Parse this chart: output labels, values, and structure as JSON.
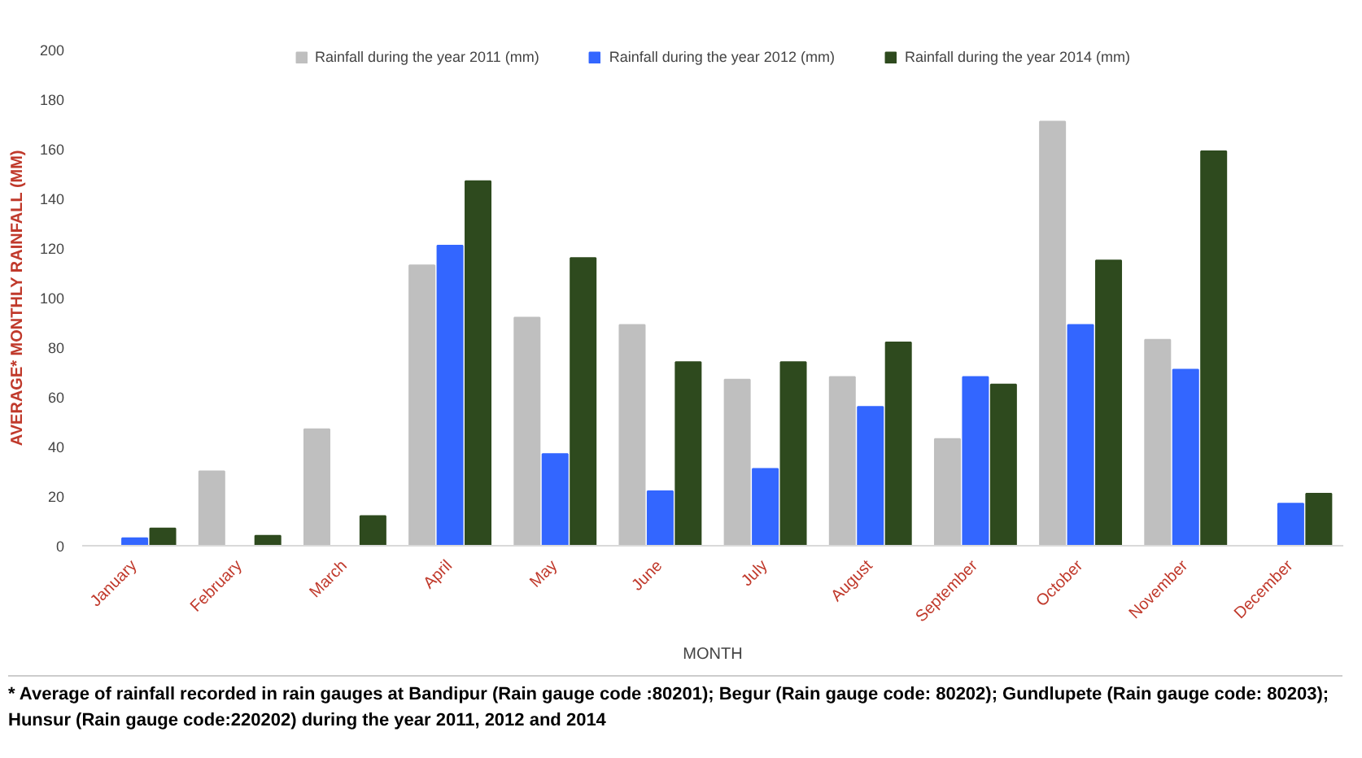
{
  "chart_data": {
    "type": "bar",
    "xlabel": "MONTH",
    "ylabel": "AVERAGE* MONTHLY RAINFALL (MM)",
    "categories": [
      "January",
      "February",
      "March",
      "April",
      "May",
      "June",
      "July",
      "August",
      "September",
      "October",
      "November",
      "December"
    ],
    "series": [
      {
        "name": "Rainfall during the year 2011 (mm)",
        "color": "#bfbfbf",
        "values": [
          0,
          30,
          47,
          113,
          92,
          89,
          67,
          68,
          43,
          171,
          83,
          0
        ]
      },
      {
        "name": "Rainfall during the year 2012 (mm)",
        "color": "#3366ff",
        "values": [
          3,
          0,
          0,
          121,
          37,
          22,
          31,
          56,
          68,
          89,
          71,
          17
        ]
      },
      {
        "name": "Rainfall during the year 2014 (mm)",
        "color": "#2e4a1e",
        "values": [
          7,
          4,
          12,
          147,
          116,
          74,
          74,
          82,
          65,
          115,
          159,
          21
        ]
      }
    ],
    "ylim": [
      0,
      200
    ],
    "yticks": [
      0,
      20,
      40,
      60,
      80,
      100,
      120,
      140,
      160,
      180,
      200
    ],
    "grid": false,
    "legend": "top",
    "annotations": [
      "* Average of  rainfall recorded in rain gauges at Bandipur (Rain gauge code :80201);  Begur (Rain gauge code: 80202); Gundlupete (Rain gauge code: 80203);  Hunsur (Rain gauge code:220202) during the year 2011, 2012 and 2014"
    ]
  }
}
